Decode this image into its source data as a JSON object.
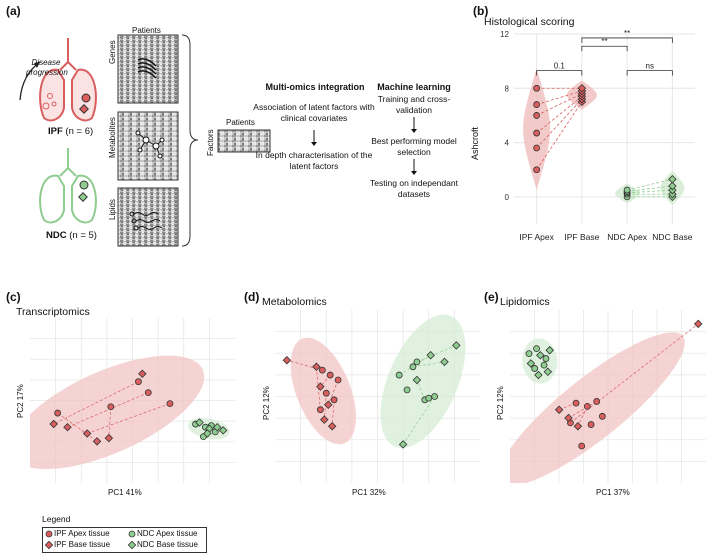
{
  "colors": {
    "ipf": "#d95f5f",
    "ipf_fill": "#f2c4c4",
    "ndc": "#8fcc8f",
    "ndc_fill": "#d6ecd6",
    "grid": "#e6e6e6"
  },
  "panel_a": {
    "label": "(a)",
    "disease_progression": "Disease progression",
    "ipf_label": "IPF",
    "ipf_n": "(n = 6)",
    "ndc_label": "NDC",
    "ndc_n": "(n = 5)",
    "patients_top": "Patients",
    "genes": "Genes",
    "metabolites": "Metabolites",
    "lipids": "Lipids",
    "patients_factor": "Patients",
    "factors": "Factors",
    "multiomics_title": "Multi-omics integration",
    "multiomics_step1": "Association of latent factors with clinical covariates",
    "multiomics_step2": "In depth characterisation of the latent factors",
    "ml_title": "Machine learning",
    "ml_step1": "Training and cross-validation",
    "ml_step2": "Best performing model selection",
    "ml_step3": "Testing on independant datasets"
  },
  "panel_b": {
    "label": "(b)",
    "title": "Histological scoring",
    "ylabel": "Ashcroft",
    "p_apex_base": "0.1",
    "p_sig1": "**",
    "p_sig2": "**",
    "p_ns": "ns"
  },
  "panel_c": {
    "label": "(c)",
    "title": "Transcriptomics",
    "xlabel": "PC1 41%",
    "ylabel": "PC2 17%"
  },
  "panel_d": {
    "label": "(d)",
    "title": "Metabolomics",
    "xlabel": "PC1 32%",
    "ylabel": "PC2 12%"
  },
  "panel_e": {
    "label": "(e)",
    "title": "Lipidomics",
    "xlabel": "PC1 37%",
    "ylabel": "PC2 12%"
  },
  "legend": {
    "title": "Legend",
    "items": [
      "IPF Apex tissue",
      "IPF Base tissue",
      "NDC Apex tissue",
      "NDC Base tissue"
    ]
  },
  "chart_data": [
    {
      "type": "violin",
      "title": "Histological scoring",
      "ylabel": "Ashcroft",
      "categories": [
        "IPF Apex",
        "IPF Base",
        "NDC Apex",
        "NDC Base"
      ],
      "ylim": [
        -2,
        12
      ],
      "yticks": [
        0,
        4,
        8,
        12
      ],
      "series": [
        {
          "name": "IPF Apex",
          "values": [
            2,
            3.6,
            4.7,
            6,
            6.8,
            8
          ]
        },
        {
          "name": "IPF Base",
          "values": [
            7,
            7.2,
            7.4,
            7.6,
            7.8,
            8
          ]
        },
        {
          "name": "NDC Apex",
          "values": [
            0,
            0.2,
            0.3,
            0.4,
            0.5
          ]
        },
        {
          "name": "NDC Base",
          "values": [
            0,
            0.2,
            0.5,
            0.8,
            1.3
          ]
        }
      ],
      "annotations": [
        {
          "from": "IPF Apex",
          "to": "IPF Base",
          "text": "0.1"
        },
        {
          "from": "IPF Base",
          "to": "NDC Apex",
          "text": "**"
        },
        {
          "from": "IPF Base",
          "to": "NDC Base",
          "text": "**"
        },
        {
          "from": "NDC Apex",
          "to": "NDC Base",
          "text": "ns"
        }
      ]
    },
    {
      "type": "scatter",
      "title": "Transcriptomics",
      "xlabel": "PC1 41%",
      "ylabel": "PC2 17%",
      "xlim": [
        0,
        10
      ],
      "ylim": [
        0,
        10
      ],
      "series": [
        {
          "name": "IPF Apex tissue",
          "x": [
            5.3,
            5.8,
            6.9,
            1.2,
            3.9
          ],
          "y": [
            6.2,
            5.5,
            4.8,
            4.2,
            4.6
          ]
        },
        {
          "name": "IPF Base tissue",
          "x": [
            1.0,
            1.7,
            2.7,
            3.2,
            3.8,
            5.5
          ],
          "y": [
            3.5,
            3.3,
            2.9,
            2.4,
            2.6,
            6.7
          ]
        },
        {
          "name": "NDC Apex tissue",
          "x": [
            8.2,
            8.7,
            9.2,
            8.6,
            9.0
          ],
          "y": [
            3.5,
            3.3,
            3.0,
            2.7,
            3.4
          ]
        },
        {
          "name": "NDC Base tissue",
          "x": [
            8.4,
            8.9,
            9.3,
            9.6,
            8.8
          ],
          "y": [
            3.6,
            3.2,
            3.3,
            3.1,
            2.9
          ]
        }
      ]
    },
    {
      "type": "scatter",
      "title": "Metabolomics",
      "xlabel": "PC1 32%",
      "ylabel": "PC2 12%",
      "xlim": [
        0,
        10
      ],
      "ylim": [
        0,
        10
      ],
      "series": [
        {
          "name": "IPF Apex tissue",
          "x": [
            2.2,
            2.6,
            3.0,
            2.4,
            2.8,
            2.1
          ],
          "y": [
            6.6,
            6.3,
            6.0,
            5.2,
            4.8,
            4.2
          ]
        },
        {
          "name": "IPF Base tissue",
          "x": [
            0.4,
            2.1,
            2.5,
            2.3,
            2.7,
            1.9
          ],
          "y": [
            7.2,
            5.6,
            4.5,
            3.6,
            3.2,
            6.8
          ]
        },
        {
          "name": "NDC Apex tissue",
          "x": [
            6.1,
            6.8,
            7.0,
            7.4,
            7.9,
            6.5,
            7.6
          ],
          "y": [
            6.3,
            6.8,
            7.1,
            4.8,
            5.0,
            5.4,
            4.9
          ]
        },
        {
          "name": "NDC Base tissue",
          "x": [
            7.7,
            8.4,
            9.0,
            7.0,
            6.3
          ],
          "y": [
            7.5,
            7.1,
            8.1,
            6.0,
            2.1
          ]
        }
      ]
    },
    {
      "type": "scatter",
      "title": "Lipidomics",
      "xlabel": "PC1 37%",
      "ylabel": "PC2 12%",
      "xlim": [
        0,
        10
      ],
      "ylim": [
        0,
        10
      ],
      "series": [
        {
          "name": "IPF Apex tissue",
          "x": [
            3.3,
            3.9,
            4.4,
            3.0,
            4.1,
            4.7,
            3.6
          ],
          "y": [
            4.6,
            4.4,
            4.7,
            3.4,
            3.3,
            3.8,
            2.0
          ]
        },
        {
          "name": "IPF Base tissue",
          "x": [
            2.4,
            3.4,
            2.9,
            9.8
          ],
          "y": [
            4.2,
            3.2,
            3.7,
            9.4
          ]
        },
        {
          "name": "NDC Apex tissue",
          "x": [
            0.8,
            1.2,
            1.7,
            1.1,
            1.6
          ],
          "y": [
            7.6,
            7.9,
            7.3,
            6.7,
            6.9
          ]
        },
        {
          "name": "NDC Base tissue",
          "x": [
            0.9,
            1.4,
            1.9,
            1.3,
            1.8
          ],
          "y": [
            7.0,
            7.5,
            7.8,
            6.3,
            6.5
          ]
        }
      ]
    }
  ]
}
